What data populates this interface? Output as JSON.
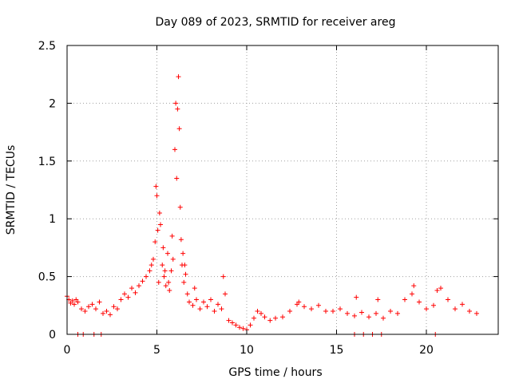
{
  "chart_data": {
    "type": "scatter",
    "title": "Day 089 of 2023, SRMTID for receiver areg",
    "xlabel": "GPS time / hours",
    "ylabel": "SRMTID / TECUs",
    "xlim": [
      0,
      24
    ],
    "ylim": [
      0,
      2.5
    ],
    "xticks": [
      0,
      5,
      10,
      15,
      20
    ],
    "xtick_labels": [
      "0",
      "5",
      "10",
      "15",
      "20"
    ],
    "yticks": [
      0,
      0.5,
      1,
      1.5,
      2,
      2.5
    ],
    "ytick_labels": [
      "0",
      "0.5",
      "1",
      "1.5",
      "2",
      "2.5"
    ],
    "grid": true,
    "marker": "+",
    "color": "#ff0000",
    "series": [
      {
        "name": "SRMTID",
        "x": [
          0.0,
          0.1,
          0.2,
          0.3,
          0.4,
          0.5,
          0.6,
          0.8,
          1.0,
          1.2,
          1.4,
          1.6,
          1.8,
          2.0,
          2.2,
          2.4,
          2.6,
          2.8,
          3.0,
          3.2,
          3.4,
          3.6,
          3.8,
          4.0,
          4.2,
          4.4,
          4.6,
          4.8,
          4.9,
          5.0,
          5.1,
          5.2,
          5.3,
          5.4,
          5.5,
          5.6,
          5.7,
          5.8,
          5.9,
          6.0,
          6.05,
          6.1,
          6.15,
          6.2,
          6.25,
          6.3,
          6.4,
          6.5,
          6.6,
          6.7,
          6.8,
          7.0,
          7.2,
          7.4,
          7.6,
          7.8,
          8.0,
          8.2,
          8.4,
          8.6,
          8.8,
          9.0,
          9.2,
          9.4,
          9.6,
          9.8,
          10.0,
          10.2,
          10.4,
          10.6,
          10.8,
          11.0,
          11.3,
          11.6,
          12.0,
          12.4,
          12.8,
          13.2,
          13.6,
          14.0,
          14.4,
          14.8,
          15.2,
          15.6,
          16.0,
          16.4,
          16.8,
          17.2,
          17.6,
          18.0,
          18.4,
          18.8,
          19.2,
          19.6,
          20.0,
          20.4,
          20.8,
          21.2,
          21.6,
          22.0,
          22.4,
          22.8,
          4.7,
          4.95,
          5.05,
          5.15,
          5.35,
          5.45,
          5.65,
          5.85,
          6.35,
          6.45,
          6.55,
          7.1,
          8.7,
          12.9,
          16.1,
          17.3,
          19.3,
          20.6,
          0.6,
          0.9,
          1.5,
          1.9,
          16.0,
          16.5,
          17.0,
          17.5,
          20.5
        ],
        "y": [
          0.33,
          0.3,
          0.27,
          0.29,
          0.26,
          0.3,
          0.28,
          0.22,
          0.2,
          0.24,
          0.26,
          0.22,
          0.28,
          0.18,
          0.2,
          0.17,
          0.24,
          0.22,
          0.3,
          0.35,
          0.32,
          0.4,
          0.36,
          0.42,
          0.46,
          0.5,
          0.55,
          0.65,
          0.8,
          1.2,
          0.45,
          0.95,
          0.6,
          0.5,
          0.42,
          0.7,
          0.38,
          0.55,
          0.65,
          1.6,
          2.0,
          1.35,
          1.95,
          2.23,
          1.78,
          1.1,
          0.6,
          0.45,
          0.52,
          0.35,
          0.28,
          0.25,
          0.3,
          0.22,
          0.28,
          0.24,
          0.3,
          0.2,
          0.26,
          0.22,
          0.35,
          0.12,
          0.1,
          0.08,
          0.06,
          0.05,
          0.04,
          0.08,
          0.14,
          0.2,
          0.18,
          0.15,
          0.12,
          0.14,
          0.15,
          0.2,
          0.26,
          0.24,
          0.22,
          0.25,
          0.2,
          0.2,
          0.22,
          0.18,
          0.16,
          0.19,
          0.15,
          0.18,
          0.14,
          0.2,
          0.18,
          0.3,
          0.35,
          0.28,
          0.22,
          0.25,
          0.4,
          0.3,
          0.22,
          0.26,
          0.2,
          0.18,
          0.6,
          1.28,
          0.9,
          1.05,
          0.75,
          0.55,
          0.45,
          0.85,
          0.82,
          0.7,
          0.6,
          0.4,
          0.5,
          0.28,
          0.32,
          0.3,
          0.42,
          0.38,
          0.0,
          0.0,
          0.0,
          0.0,
          0.0,
          0.0,
          0.0,
          0.0,
          0.0
        ]
      }
    ]
  }
}
